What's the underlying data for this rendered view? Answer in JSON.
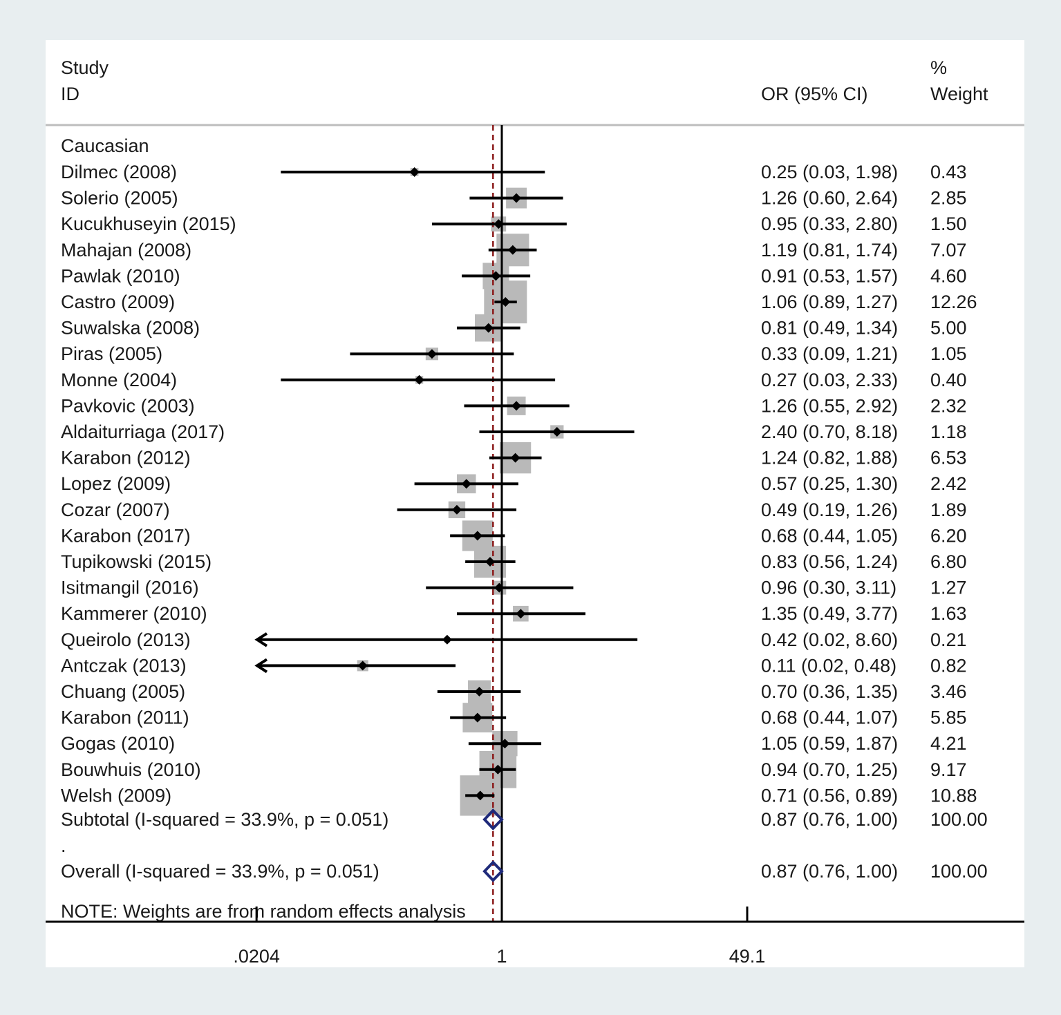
{
  "header": {
    "study_line1": "Study",
    "study_line2": "ID",
    "or_label": "OR (95% CI)",
    "weight_line1": "%",
    "weight_line2": "Weight"
  },
  "group_label": "Caucasian",
  "spacer_label": ".",
  "note": "NOTE: Weights are from random effects analysis",
  "colors": {
    "box": "#b9b9b9",
    "line": "#000000",
    "diamond": "#1f2a7a",
    "overall_line": "#8b1a1a",
    "background": "#e8eef0",
    "panel": "#ffffff"
  },
  "chart_data": {
    "type": "forest",
    "scale": "log",
    "null_value": 1,
    "xlim": [
      0.0204,
      49.1
    ],
    "x_ticks": [
      {
        "value": 0.0204,
        "label": ".0204"
      },
      {
        "value": 1,
        "label": "1"
      },
      {
        "value": 49.1,
        "label": "49.1"
      }
    ],
    "studies": [
      {
        "label": "Dilmec (2008)",
        "or": 0.25,
        "lo": 0.03,
        "hi": 1.98,
        "weight": 0.43,
        "ci_text": "0.25 (0.03, 1.98)",
        "weight_text": "0.43"
      },
      {
        "label": "Solerio (2005)",
        "or": 1.26,
        "lo": 0.6,
        "hi": 2.64,
        "weight": 2.85,
        "ci_text": "1.26 (0.60, 2.64)",
        "weight_text": "2.85"
      },
      {
        "label": "Kucukhuseyin (2015)",
        "or": 0.95,
        "lo": 0.33,
        "hi": 2.8,
        "weight": 1.5,
        "ci_text": "0.95 (0.33, 2.80)",
        "weight_text": "1.50"
      },
      {
        "label": "Mahajan (2008)",
        "or": 1.19,
        "lo": 0.81,
        "hi": 1.74,
        "weight": 7.07,
        "ci_text": "1.19 (0.81, 1.74)",
        "weight_text": "7.07"
      },
      {
        "label": "Pawlak (2010)",
        "or": 0.91,
        "lo": 0.53,
        "hi": 1.57,
        "weight": 4.6,
        "ci_text": "0.91 (0.53, 1.57)",
        "weight_text": "4.60"
      },
      {
        "label": "Castro (2009)",
        "or": 1.06,
        "lo": 0.89,
        "hi": 1.27,
        "weight": 12.26,
        "ci_text": "1.06 (0.89, 1.27)",
        "weight_text": "12.26"
      },
      {
        "label": "Suwalska (2008)",
        "or": 0.81,
        "lo": 0.49,
        "hi": 1.34,
        "weight": 5.0,
        "ci_text": "0.81 (0.49, 1.34)",
        "weight_text": "5.00"
      },
      {
        "label": "Piras (2005)",
        "or": 0.33,
        "lo": 0.09,
        "hi": 1.21,
        "weight": 1.05,
        "ci_text": "0.33 (0.09, 1.21)",
        "weight_text": "1.05"
      },
      {
        "label": "Monne (2004)",
        "or": 0.27,
        "lo": 0.03,
        "hi": 2.33,
        "weight": 0.4,
        "ci_text": "0.27 (0.03, 2.33)",
        "weight_text": "0.40"
      },
      {
        "label": "Pavkovic (2003)",
        "or": 1.26,
        "lo": 0.55,
        "hi": 2.92,
        "weight": 2.32,
        "ci_text": "1.26 (0.55, 2.92)",
        "weight_text": "2.32"
      },
      {
        "label": "Aldaiturriaga (2017)",
        "or": 2.4,
        "lo": 0.7,
        "hi": 8.18,
        "weight": 1.18,
        "ci_text": "2.40 (0.70, 8.18)",
        "weight_text": "1.18"
      },
      {
        "label": "Karabon (2012)",
        "or": 1.24,
        "lo": 0.82,
        "hi": 1.88,
        "weight": 6.53,
        "ci_text": "1.24 (0.82, 1.88)",
        "weight_text": "6.53"
      },
      {
        "label": "Lopez (2009)",
        "or": 0.57,
        "lo": 0.25,
        "hi": 1.3,
        "weight": 2.42,
        "ci_text": "0.57 (0.25, 1.30)",
        "weight_text": "2.42"
      },
      {
        "label": "Cozar (2007)",
        "or": 0.49,
        "lo": 0.19,
        "hi": 1.26,
        "weight": 1.89,
        "ci_text": "0.49 (0.19, 1.26)",
        "weight_text": "1.89"
      },
      {
        "label": "Karabon (2017)",
        "or": 0.68,
        "lo": 0.44,
        "hi": 1.05,
        "weight": 6.2,
        "ci_text": "0.68 (0.44, 1.05)",
        "weight_text": "6.20"
      },
      {
        "label": "Tupikowski (2015)",
        "or": 0.83,
        "lo": 0.56,
        "hi": 1.24,
        "weight": 6.8,
        "ci_text": "0.83 (0.56, 1.24)",
        "weight_text": "6.80"
      },
      {
        "label": "Isitmangil (2016)",
        "or": 0.96,
        "lo": 0.3,
        "hi": 3.11,
        "weight": 1.27,
        "ci_text": "0.96 (0.30, 3.11)",
        "weight_text": "1.27"
      },
      {
        "label": "Kammerer (2010)",
        "or": 1.35,
        "lo": 0.49,
        "hi": 3.77,
        "weight": 1.63,
        "ci_text": "1.35 (0.49, 3.77)",
        "weight_text": "1.63"
      },
      {
        "label": "Queirolo (2013)",
        "or": 0.42,
        "lo": 0.02,
        "hi": 8.6,
        "weight": 0.21,
        "ci_text": "0.42 (0.02, 8.60)",
        "weight_text": "0.21"
      },
      {
        "label": "Antczak (2013)",
        "or": 0.11,
        "lo": 0.02,
        "hi": 0.48,
        "weight": 0.82,
        "ci_text": "0.11 (0.02, 0.48)",
        "weight_text": "0.82"
      },
      {
        "label": "Chuang (2005)",
        "or": 0.7,
        "lo": 0.36,
        "hi": 1.35,
        "weight": 3.46,
        "ci_text": "0.70 (0.36, 1.35)",
        "weight_text": "3.46"
      },
      {
        "label": "Karabon (2011)",
        "or": 0.68,
        "lo": 0.44,
        "hi": 1.07,
        "weight": 5.85,
        "ci_text": "0.68 (0.44, 1.07)",
        "weight_text": "5.85"
      },
      {
        "label": "Gogas (2010)",
        "or": 1.05,
        "lo": 0.59,
        "hi": 1.87,
        "weight": 4.21,
        "ci_text": "1.05 (0.59, 1.87)",
        "weight_text": "4.21"
      },
      {
        "label": "Bouwhuis (2010)",
        "or": 0.94,
        "lo": 0.7,
        "hi": 1.25,
        "weight": 9.17,
        "ci_text": "0.94 (0.70, 1.25)",
        "weight_text": "9.17"
      },
      {
        "label": "Welsh (2009)",
        "or": 0.71,
        "lo": 0.56,
        "hi": 0.89,
        "weight": 10.88,
        "ci_text": "0.71 (0.56, 0.89)",
        "weight_text": "10.88"
      }
    ],
    "subtotal": {
      "label": "Subtotal  (I-squared = 33.9%, p = 0.051)",
      "or": 0.87,
      "lo": 0.76,
      "hi": 1.0,
      "ci_text": "0.87 (0.76, 1.00)",
      "weight_text": "100.00"
    },
    "overall": {
      "label": "Overall  (I-squared = 33.9%, p = 0.051)",
      "or": 0.87,
      "lo": 0.76,
      "hi": 1.0,
      "ci_text": "0.87 (0.76, 1.00)",
      "weight_text": "100.00"
    }
  }
}
